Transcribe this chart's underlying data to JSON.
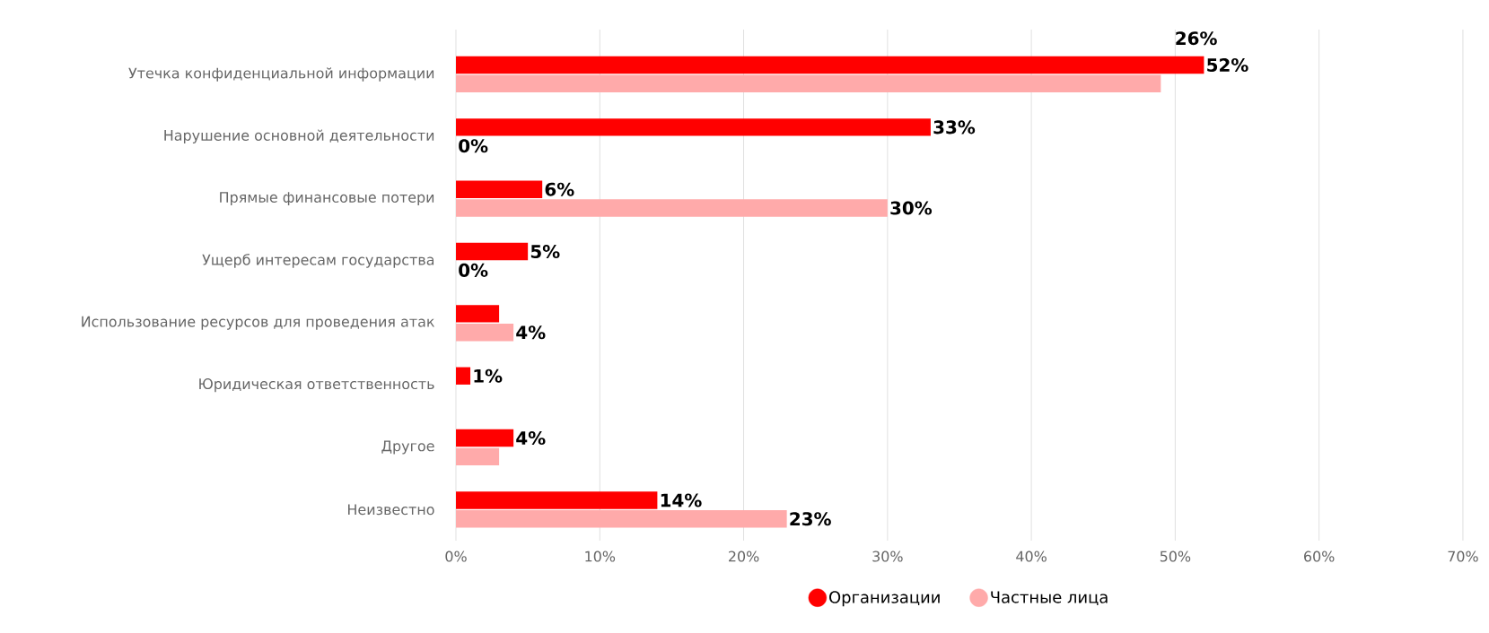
{
  "chart_data": {
    "type": "bar",
    "orientation": "horizontal",
    "categories": [
      "Утечка конфиденциальной информации",
      "Нарушение основной деятельности",
      "Прямые финансовые потери",
      "Ущерб интересам государства",
      "Использование ресурсов для проведения атак",
      "Юридическая ответственность",
      "Другое",
      "Неизвестно"
    ],
    "series": [
      {
        "name": "Организации",
        "color": "#ff0000",
        "values": [
          52,
          33,
          6,
          5,
          3,
          1,
          4,
          14
        ],
        "value_labels": [
          "52%",
          "33%",
          "6%",
          "5%",
          null,
          "1%",
          "4%",
          "14%"
        ]
      },
      {
        "name": "Частные лица",
        "color": "#ffaaaa",
        "values": [
          49,
          0,
          30,
          0,
          4,
          null,
          3,
          23
        ],
        "value_labels": [
          null,
          "0%",
          "30%",
          "0%",
          "4%",
          null,
          null,
          "23%"
        ]
      }
    ],
    "xlim": [
      0,
      70
    ],
    "xticks": [
      {
        "value": 0,
        "label": "0%"
      },
      {
        "value": 10,
        "label": "10%"
      },
      {
        "value": 20,
        "label": "20%"
      },
      {
        "value": 30,
        "label": "30%"
      },
      {
        "value": 40,
        "label": "40%"
      },
      {
        "value": 50,
        "label": "50%"
      },
      {
        "value": 60,
        "label": "60%"
      },
      {
        "value": 70,
        "label": "70%"
      }
    ],
    "grid": "x",
    "legend": "bottom",
    "annotations": [
      "26%"
    ]
  }
}
